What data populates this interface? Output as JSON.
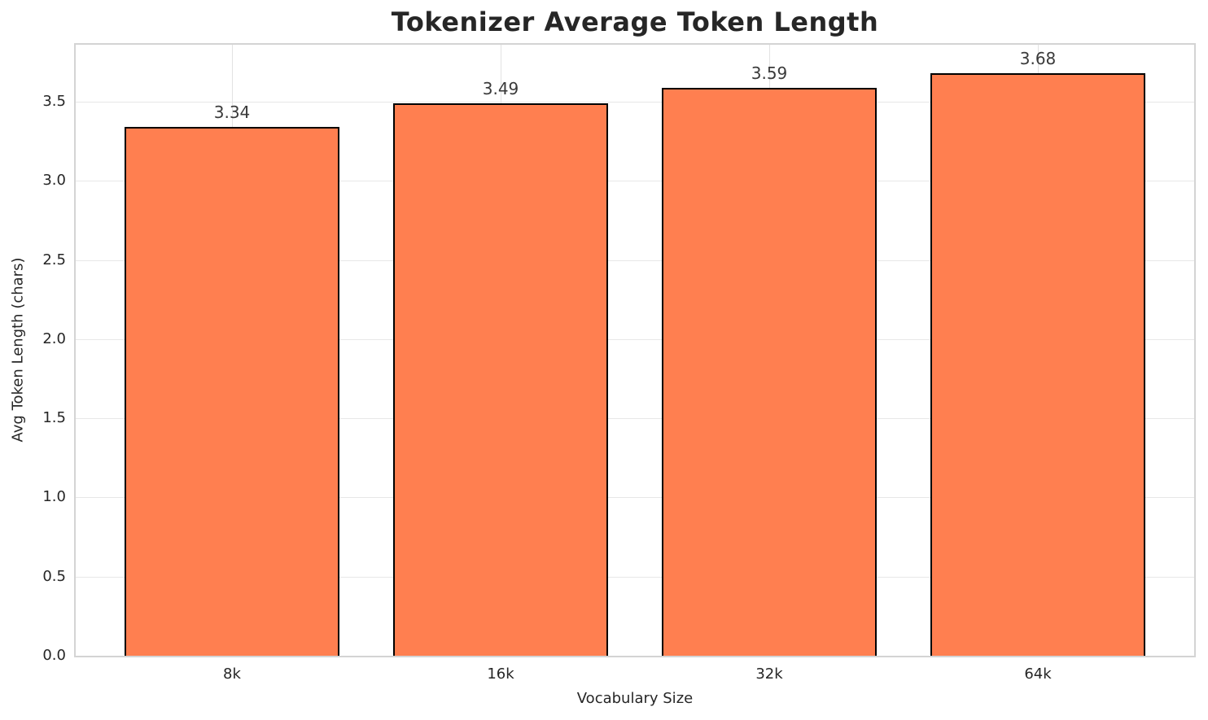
{
  "chart_data": {
    "type": "bar",
    "title": "Tokenizer Average Token Length",
    "xlabel": "Vocabulary Size",
    "ylabel": "Avg Token Length (chars)",
    "categories": [
      "8k",
      "16k",
      "32k",
      "64k"
    ],
    "values": [
      3.34,
      3.49,
      3.59,
      3.68
    ],
    "value_labels": [
      "3.34",
      "3.49",
      "3.59",
      "3.68"
    ],
    "yticks": [
      0.0,
      0.5,
      1.0,
      1.5,
      2.0,
      2.5,
      3.0,
      3.5
    ],
    "ytick_labels": [
      "0.0",
      "0.5",
      "1.0",
      "1.5",
      "2.0",
      "2.5",
      "3.0",
      "3.5"
    ],
    "ylim": [
      0,
      3.86
    ],
    "grid": true,
    "legend": null,
    "bar_color": "#FF7F50",
    "bar_edge_color": "#000000",
    "grid_color": "#e7e7e7",
    "spine_color": "#d4d4d4",
    "text_color": "#262626",
    "background_color": "#ffffff"
  }
}
